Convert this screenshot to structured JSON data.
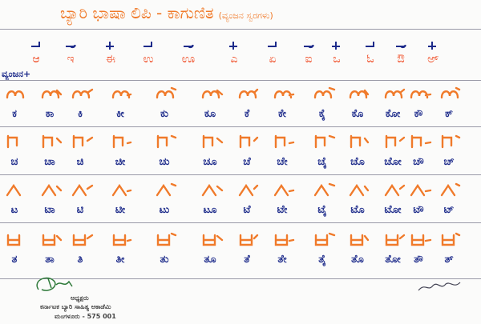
{
  "title": "ಬ್ಯಾರಿ ಭಾಷಾ ಲಿಪಿ - ಕಾಗುಣಿತ",
  "subtitle": "(ವ್ಯಂಜನ ಸ್ವರಗಳು)",
  "vowel_signs": [
    "ಆ",
    "ಇ",
    "ಈ",
    "ಉ",
    "ಊ",
    "ಎ",
    "ಏ",
    "ಐ",
    "ಒ",
    "ಓ",
    "ಔ",
    "ಅ್"
  ],
  "consonant_label": "ವ್ಯಂಜನ+",
  "rows": [
    {
      "kannada": [
        "ಕ",
        "ಕಾ",
        "ಕಿ",
        "ಕೀ",
        "ಕು",
        "ಕೂ",
        "ಕೆ",
        "ಕೇ",
        "ಕೈ",
        "ಕೊ",
        "ಕೋ",
        "ಕೌ",
        "ಕ್"
      ]
    },
    {
      "kannada": [
        "ಚ",
        "ಚಾ",
        "ಚಿ",
        "ಚೀ",
        "ಚು",
        "ಚೂ",
        "ಚೆ",
        "ಚೇ",
        "ಚೈ",
        "ಚೊ",
        "ಚೋ",
        "ಚೌ",
        "ಚ್"
      ]
    },
    {
      "kannada": [
        "ಟ",
        "ಟಾ",
        "ಟಿ",
        "ಟೀ",
        "ಟು",
        "ಟೂ",
        "ಟೆ",
        "ಟೇ",
        "ಟೈ",
        "ಟೊ",
        "ಟೋ",
        "ಟೌ",
        "ಟ್"
      ]
    },
    {
      "kannada": [
        "ತ",
        "ತಾ",
        "ತಿ",
        "ತೀ",
        "ತು",
        "ತೂ",
        "ತೆ",
        "ತೇ",
        "ತೈ",
        "ತೊ",
        "ತೋ",
        "ತೌ",
        "ತ್"
      ]
    }
  ],
  "stamp": {
    "line1": "ಅಧ್ಯಕ್ಷರು",
    "line2": "ಕರ್ನಾಟಕ ಬ್ಯಾರಿ ಸಾಹಿತ್ಯ ಅಕಾಡೆಮಿ",
    "line3": "ಮಂಗಳೂರು - 575 001"
  },
  "colors": {
    "byari_script": "#f07a2a",
    "kannada_script": "#1c2a8a",
    "signature": "#2f7a3a"
  }
}
